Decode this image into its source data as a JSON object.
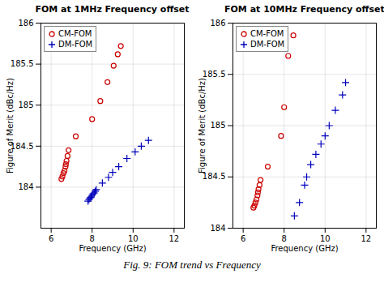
{
  "caption": "Fig. 9: FOM trend vs Frequency",
  "chart_data": [
    {
      "type": "scatter",
      "title": "FOM at 1MHz Frequency offset",
      "xlabel": "Frequency (GHz)",
      "ylabel": "Figure of Merit (dBc/Hz)",
      "xlim": [
        5.5,
        12.5
      ],
      "xticks": [
        6,
        8,
        10,
        12
      ],
      "ylim": [
        183.5,
        186.0
      ],
      "yticks": [
        184.0,
        184.5,
        185.0,
        185.5,
        186.0
      ],
      "grid": true,
      "legend": "upper left",
      "series": [
        {
          "name": "CM-FOM",
          "color": "#cc0000",
          "marker": "circle",
          "x": [
            6.5,
            6.55,
            6.6,
            6.65,
            6.7,
            6.72,
            6.75,
            6.8,
            6.85,
            7.2,
            8.0,
            8.4,
            8.75,
            9.05,
            9.25,
            9.4
          ],
          "values": [
            184.1,
            184.13,
            184.17,
            184.2,
            184.25,
            184.28,
            184.32,
            184.38,
            184.45,
            184.62,
            184.83,
            185.05,
            185.28,
            185.48,
            185.62,
            185.72
          ]
        },
        {
          "name": "DM-FOM",
          "color": "#0000bb",
          "marker": "plus",
          "x": [
            7.8,
            7.85,
            7.9,
            7.95,
            8.0,
            8.05,
            8.1,
            8.15,
            8.2,
            8.5,
            8.8,
            9.0,
            9.3,
            9.7,
            10.1,
            10.4,
            10.75
          ],
          "values": [
            183.83,
            183.85,
            183.87,
            183.88,
            183.9,
            183.92,
            183.93,
            183.95,
            183.97,
            184.05,
            184.12,
            184.18,
            184.25,
            184.35,
            184.43,
            184.5,
            184.57
          ]
        }
      ]
    },
    {
      "type": "scatter",
      "title": "FOM at 10MHz Frequency offset",
      "xlabel": "Frequency (GHz)",
      "ylabel": "Figure of Merit (dBc/Hz)",
      "xlim": [
        5.5,
        12.5
      ],
      "xticks": [
        6,
        8,
        10,
        12
      ],
      "ylim": [
        184.0,
        186.0
      ],
      "yticks": [
        184.0,
        184.5,
        185.0,
        185.5,
        186.0
      ],
      "grid": true,
      "legend": "upper left",
      "series": [
        {
          "name": "CM-FOM",
          "color": "#cc0000",
          "marker": "circle",
          "x": [
            6.5,
            6.55,
            6.6,
            6.65,
            6.7,
            6.72,
            6.75,
            6.8,
            6.85,
            7.2,
            7.85,
            8.0,
            8.2,
            8.45
          ],
          "values": [
            184.2,
            184.22,
            184.25,
            184.28,
            184.32,
            184.35,
            184.38,
            184.42,
            184.47,
            184.6,
            184.9,
            185.18,
            185.68,
            185.88
          ]
        },
        {
          "name": "DM-FOM",
          "color": "#0000bb",
          "marker": "plus",
          "x": [
            8.5,
            8.75,
            9.0,
            9.1,
            9.3,
            9.55,
            9.8,
            10.0,
            10.2,
            10.5,
            10.85,
            11.0
          ],
          "values": [
            184.12,
            184.25,
            184.42,
            184.5,
            184.62,
            184.72,
            184.82,
            184.9,
            185.0,
            185.15,
            185.3,
            185.42
          ]
        }
      ]
    }
  ]
}
